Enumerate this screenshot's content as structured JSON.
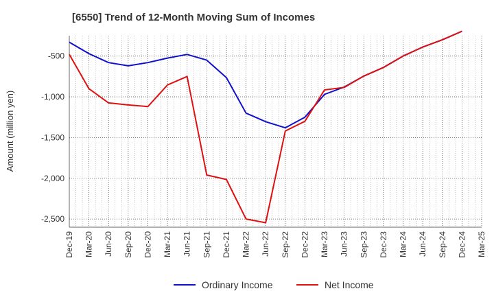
{
  "chart_data": {
    "type": "line",
    "title": "[6550]  Trend of 12-Month Moving Sum of Incomes",
    "xlabel": "",
    "ylabel": "Amount (million yen)",
    "ylim": [
      -2600,
      -250
    ],
    "yticks": [
      -500,
      -1000,
      -1500,
      -2000,
      -2500
    ],
    "ytick_labels": [
      "-500",
      "-1,000",
      "-1,500",
      "-2,000",
      "-2,500"
    ],
    "categories": [
      "Dec-19",
      "Mar-20",
      "Jun-20",
      "Sep-20",
      "Dec-20",
      "Mar-21",
      "Jun-21",
      "Sep-21",
      "Dec-21",
      "Mar-22",
      "Jun-22",
      "Sep-22",
      "Dec-22",
      "Mar-23",
      "Jun-23",
      "Sep-23",
      "Dec-23",
      "Mar-24",
      "Jun-24",
      "Sep-24",
      "Dec-24",
      "Mar-25"
    ],
    "grid": true,
    "legend_position": "bottom-center",
    "series": [
      {
        "name": "Ordinary Income",
        "color": "#1010cc",
        "values": [
          -330,
          -470,
          -580,
          -620,
          -580,
          -525,
          -480,
          -550,
          -765,
          -1200,
          -1305,
          -1380,
          -1250,
          -970,
          -880,
          -745,
          -640,
          -500,
          -390,
          -300,
          -195,
          null
        ]
      },
      {
        "name": "Net Income",
        "color": "#e01010",
        "values": [
          -480,
          -900,
          -1075,
          -1100,
          -1120,
          -855,
          -750,
          -1960,
          -2015,
          -2500,
          -2545,
          -1420,
          -1300,
          -915,
          -885,
          -745,
          -640,
          -500,
          -390,
          -300,
          -195,
          null
        ]
      }
    ]
  }
}
